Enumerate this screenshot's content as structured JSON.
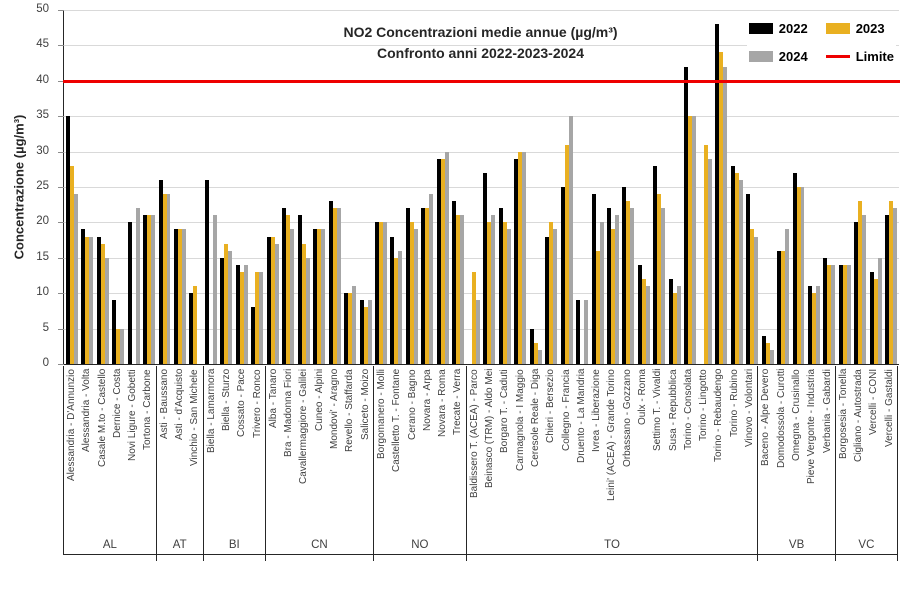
{
  "title": {
    "line1": "NO2 Concentrazioni medie annue (µg/m³)",
    "line2": "Confronto anni 2022-2023-2024"
  },
  "y_axis": {
    "label": "Concentrazione (µg/m³)",
    "ticks": [
      0,
      5,
      10,
      15,
      20,
      25,
      30,
      35,
      40,
      45,
      50
    ]
  },
  "legend": [
    {
      "label": "2022",
      "color": "#000000",
      "type": "bar"
    },
    {
      "label": "2023",
      "color": "#E9B021",
      "type": "bar"
    },
    {
      "label": "2024",
      "color": "#A6A6A6",
      "type": "bar"
    },
    {
      "label": "Limite",
      "color": "#EE0000",
      "type": "line"
    }
  ],
  "chart_data": {
    "type": "bar",
    "title": "NO2 Concentrazioni medie annue (µg/m³) - Confronto anni 2022-2023-2024",
    "ylabel": "Concentrazione (µg/m³)",
    "ylim": [
      0,
      50
    ],
    "grid": true,
    "legend_position": "top-right",
    "limit_line": {
      "label": "Limite",
      "value": 40,
      "color": "#EE0000"
    },
    "series_names": [
      "2022",
      "2023",
      "2024"
    ],
    "series_colors": [
      "#000000",
      "#E9B021",
      "#A6A6A6"
    ],
    "groups": [
      {
        "label": "AL",
        "stations": [
          {
            "name": "Alessandria - D'Annunzio",
            "values": [
              35,
              28,
              24
            ]
          },
          {
            "name": "Alessandria - Volta",
            "values": [
              19,
              18,
              18
            ]
          },
          {
            "name": "Casale M.to - Castello",
            "values": [
              18,
              17,
              15
            ]
          },
          {
            "name": "Dernice - Costa",
            "values": [
              9,
              5,
              5
            ]
          },
          {
            "name": "Novi Ligure - Gobetti",
            "values": [
              20,
              null,
              22
            ]
          },
          {
            "name": "Tortona - Carbone",
            "values": [
              21,
              21,
              21
            ]
          }
        ]
      },
      {
        "label": "AT",
        "stations": [
          {
            "name": "Asti - Baussano",
            "values": [
              26,
              24,
              24
            ]
          },
          {
            "name": "Asti - d'Acquisto",
            "values": [
              19,
              19,
              19
            ]
          },
          {
            "name": "Vinchio - San Michele",
            "values": [
              10,
              11,
              null
            ]
          }
        ]
      },
      {
        "label": "BI",
        "stations": [
          {
            "name": "Biella - Lamarmora",
            "values": [
              26,
              null,
              21
            ]
          },
          {
            "name": "Biella - Sturzo",
            "values": [
              15,
              17,
              16
            ]
          },
          {
            "name": "Cossato - Pace",
            "values": [
              14,
              13,
              14
            ]
          },
          {
            "name": "Trivero - Ronco",
            "values": [
              8,
              13,
              13
            ]
          }
        ]
      },
      {
        "label": "CN",
        "stations": [
          {
            "name": "Alba - Tanaro",
            "values": [
              18,
              18,
              17
            ]
          },
          {
            "name": "Bra - Madonna Fiori",
            "values": [
              22,
              21,
              19
            ]
          },
          {
            "name": "Cavallermaggiore - Galilei",
            "values": [
              21,
              17,
              15
            ]
          },
          {
            "name": "Cuneo - Alpini",
            "values": [
              19,
              19,
              19
            ]
          },
          {
            "name": "Mondovi' - Aragno",
            "values": [
              23,
              22,
              22
            ]
          },
          {
            "name": "Revello - Staffarda",
            "values": [
              10,
              10,
              11
            ]
          },
          {
            "name": "Saliceto - Moizo",
            "values": [
              9,
              8,
              9
            ]
          }
        ]
      },
      {
        "label": "NO",
        "stations": [
          {
            "name": "Borgomanero - Molli",
            "values": [
              20,
              20,
              20
            ]
          },
          {
            "name": "Castelletto T. - Fontane",
            "values": [
              18,
              15,
              16
            ]
          },
          {
            "name": "Cerano - Bagno",
            "values": [
              22,
              20,
              19
            ]
          },
          {
            "name": "Novara - Arpa",
            "values": [
              22,
              22,
              24
            ]
          },
          {
            "name": "Novara - Roma",
            "values": [
              29,
              29,
              30
            ]
          },
          {
            "name": "Trecate - Verra",
            "values": [
              23,
              21,
              21
            ]
          }
        ]
      },
      {
        "label": "TO",
        "stations": [
          {
            "name": "Baldissero T. (ACEA) - Parco",
            "values": [
              null,
              13,
              9
            ]
          },
          {
            "name": "Beinasco (TRM) - Aldo Mei",
            "values": [
              27,
              20,
              21
            ]
          },
          {
            "name": "Borgaro T. - Caduti",
            "values": [
              22,
              20,
              19
            ]
          },
          {
            "name": "Carmagnola - I Maggio",
            "values": [
              29,
              30,
              30
            ]
          },
          {
            "name": "Ceresole Reale - Diga",
            "values": [
              5,
              3,
              2
            ]
          },
          {
            "name": "Chieri - Bersezio",
            "values": [
              18,
              20,
              19
            ]
          },
          {
            "name": "Collegno - Francia",
            "values": [
              25,
              31,
              35
            ]
          },
          {
            "name": "Druento - La Mandria",
            "values": [
              9,
              null,
              9
            ]
          },
          {
            "name": "Ivrea - Liberazione",
            "values": [
              24,
              16,
              20
            ]
          },
          {
            "name": "Leini' (ACEA) - Grande Torino",
            "values": [
              22,
              19,
              21
            ]
          },
          {
            "name": "Orbassano - Gozzano",
            "values": [
              25,
              23,
              22
            ]
          },
          {
            "name": "Oulx - Roma",
            "values": [
              14,
              12,
              11
            ]
          },
          {
            "name": "Settimo T. - Vivaldi",
            "values": [
              28,
              24,
              22
            ]
          },
          {
            "name": "Susa - Repubblica",
            "values": [
              12,
              10,
              11
            ]
          },
          {
            "name": "Torino - Consolata",
            "values": [
              42,
              35,
              35
            ]
          },
          {
            "name": "Torino - Lingotto",
            "values": [
              null,
              31,
              29
            ]
          },
          {
            "name": "Torino - Rebaudengo",
            "values": [
              48,
              44,
              42
            ]
          },
          {
            "name": "Torino - Rubino",
            "values": [
              28,
              27,
              26
            ]
          },
          {
            "name": "Vinovo - Volontari",
            "values": [
              24,
              19,
              18
            ]
          }
        ]
      },
      {
        "label": "VB",
        "stations": [
          {
            "name": "Baceno - Alpe Devero",
            "values": [
              4,
              3,
              2
            ]
          },
          {
            "name": "Domodossola - Curotti",
            "values": [
              16,
              16,
              19
            ]
          },
          {
            "name": "Omegna - Crusinallo",
            "values": [
              27,
              25,
              25
            ]
          },
          {
            "name": "Pieve Vergonte - Industria",
            "values": [
              11,
              10,
              11
            ]
          },
          {
            "name": "Verbania - Gabardi",
            "values": [
              15,
              14,
              14
            ]
          }
        ]
      },
      {
        "label": "VC",
        "stations": [
          {
            "name": "Borgosesia - Tonella",
            "values": [
              14,
              14,
              14
            ]
          },
          {
            "name": "Cigliano - Autostrada",
            "values": [
              20,
              23,
              21
            ]
          },
          {
            "name": "Vercelli - CONI",
            "values": [
              13,
              12,
              15
            ]
          },
          {
            "name": "Vercelli - Gastaldi",
            "values": [
              21,
              23,
              22
            ]
          }
        ]
      }
    ]
  }
}
